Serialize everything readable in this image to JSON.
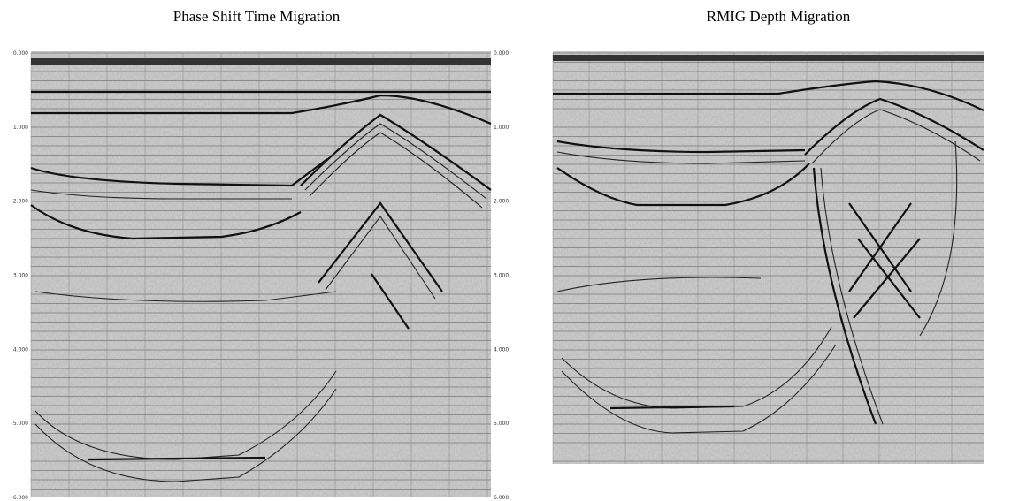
{
  "panels": [
    {
      "title": "Phase Shift Time Migration",
      "axis_labels": [
        "0.000",
        "1.000",
        "2.000",
        "3.000",
        "4.000",
        "5.000",
        "6.000"
      ]
    },
    {
      "title": "RMIG Depth Migration"
    }
  ]
}
